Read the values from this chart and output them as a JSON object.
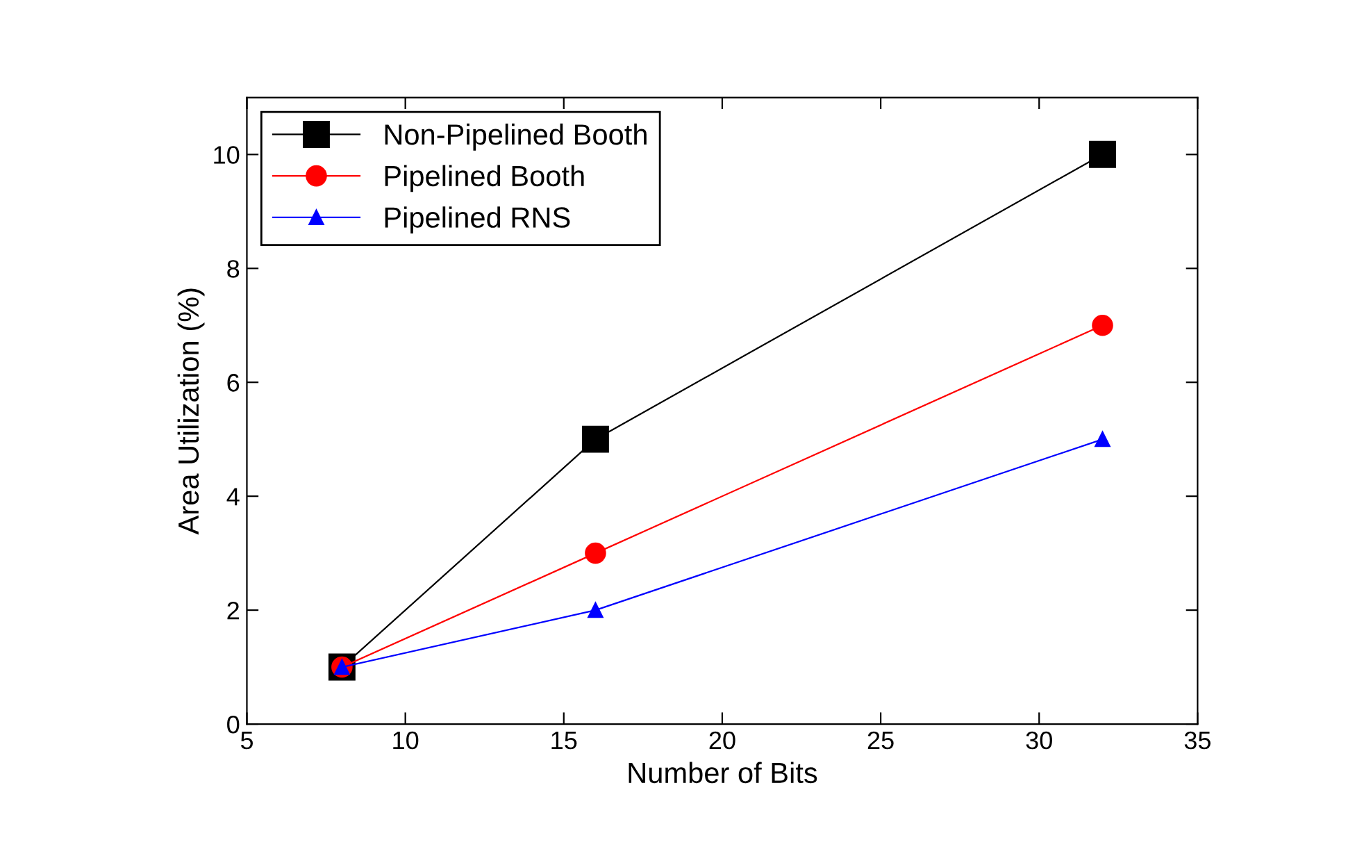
{
  "chart_data": {
    "type": "line",
    "xlabel": "Number of Bits",
    "ylabel": "Area Utilization (%)",
    "x": [
      8,
      16,
      32
    ],
    "series": [
      {
        "name": "Non-Pipelined Booth",
        "color": "#000000",
        "values": [
          1,
          5,
          10
        ],
        "marker": "square"
      },
      {
        "name": "Pipelined Booth",
        "color": "#ff0000",
        "values": [
          1,
          3,
          7
        ],
        "marker": "circle"
      },
      {
        "name": "Pipelined RNS",
        "color": "#0000ff",
        "values": [
          1,
          2,
          5
        ],
        "marker": "triangle"
      }
    ],
    "xlim": [
      5,
      35
    ],
    "xticks": [
      5,
      10,
      15,
      20,
      25,
      30,
      35
    ],
    "ylim": [
      0,
      11
    ],
    "yticks": [
      0,
      2,
      4,
      6,
      8,
      10
    ],
    "grid": false,
    "legend": "top left",
    "line_style": "solid"
  }
}
